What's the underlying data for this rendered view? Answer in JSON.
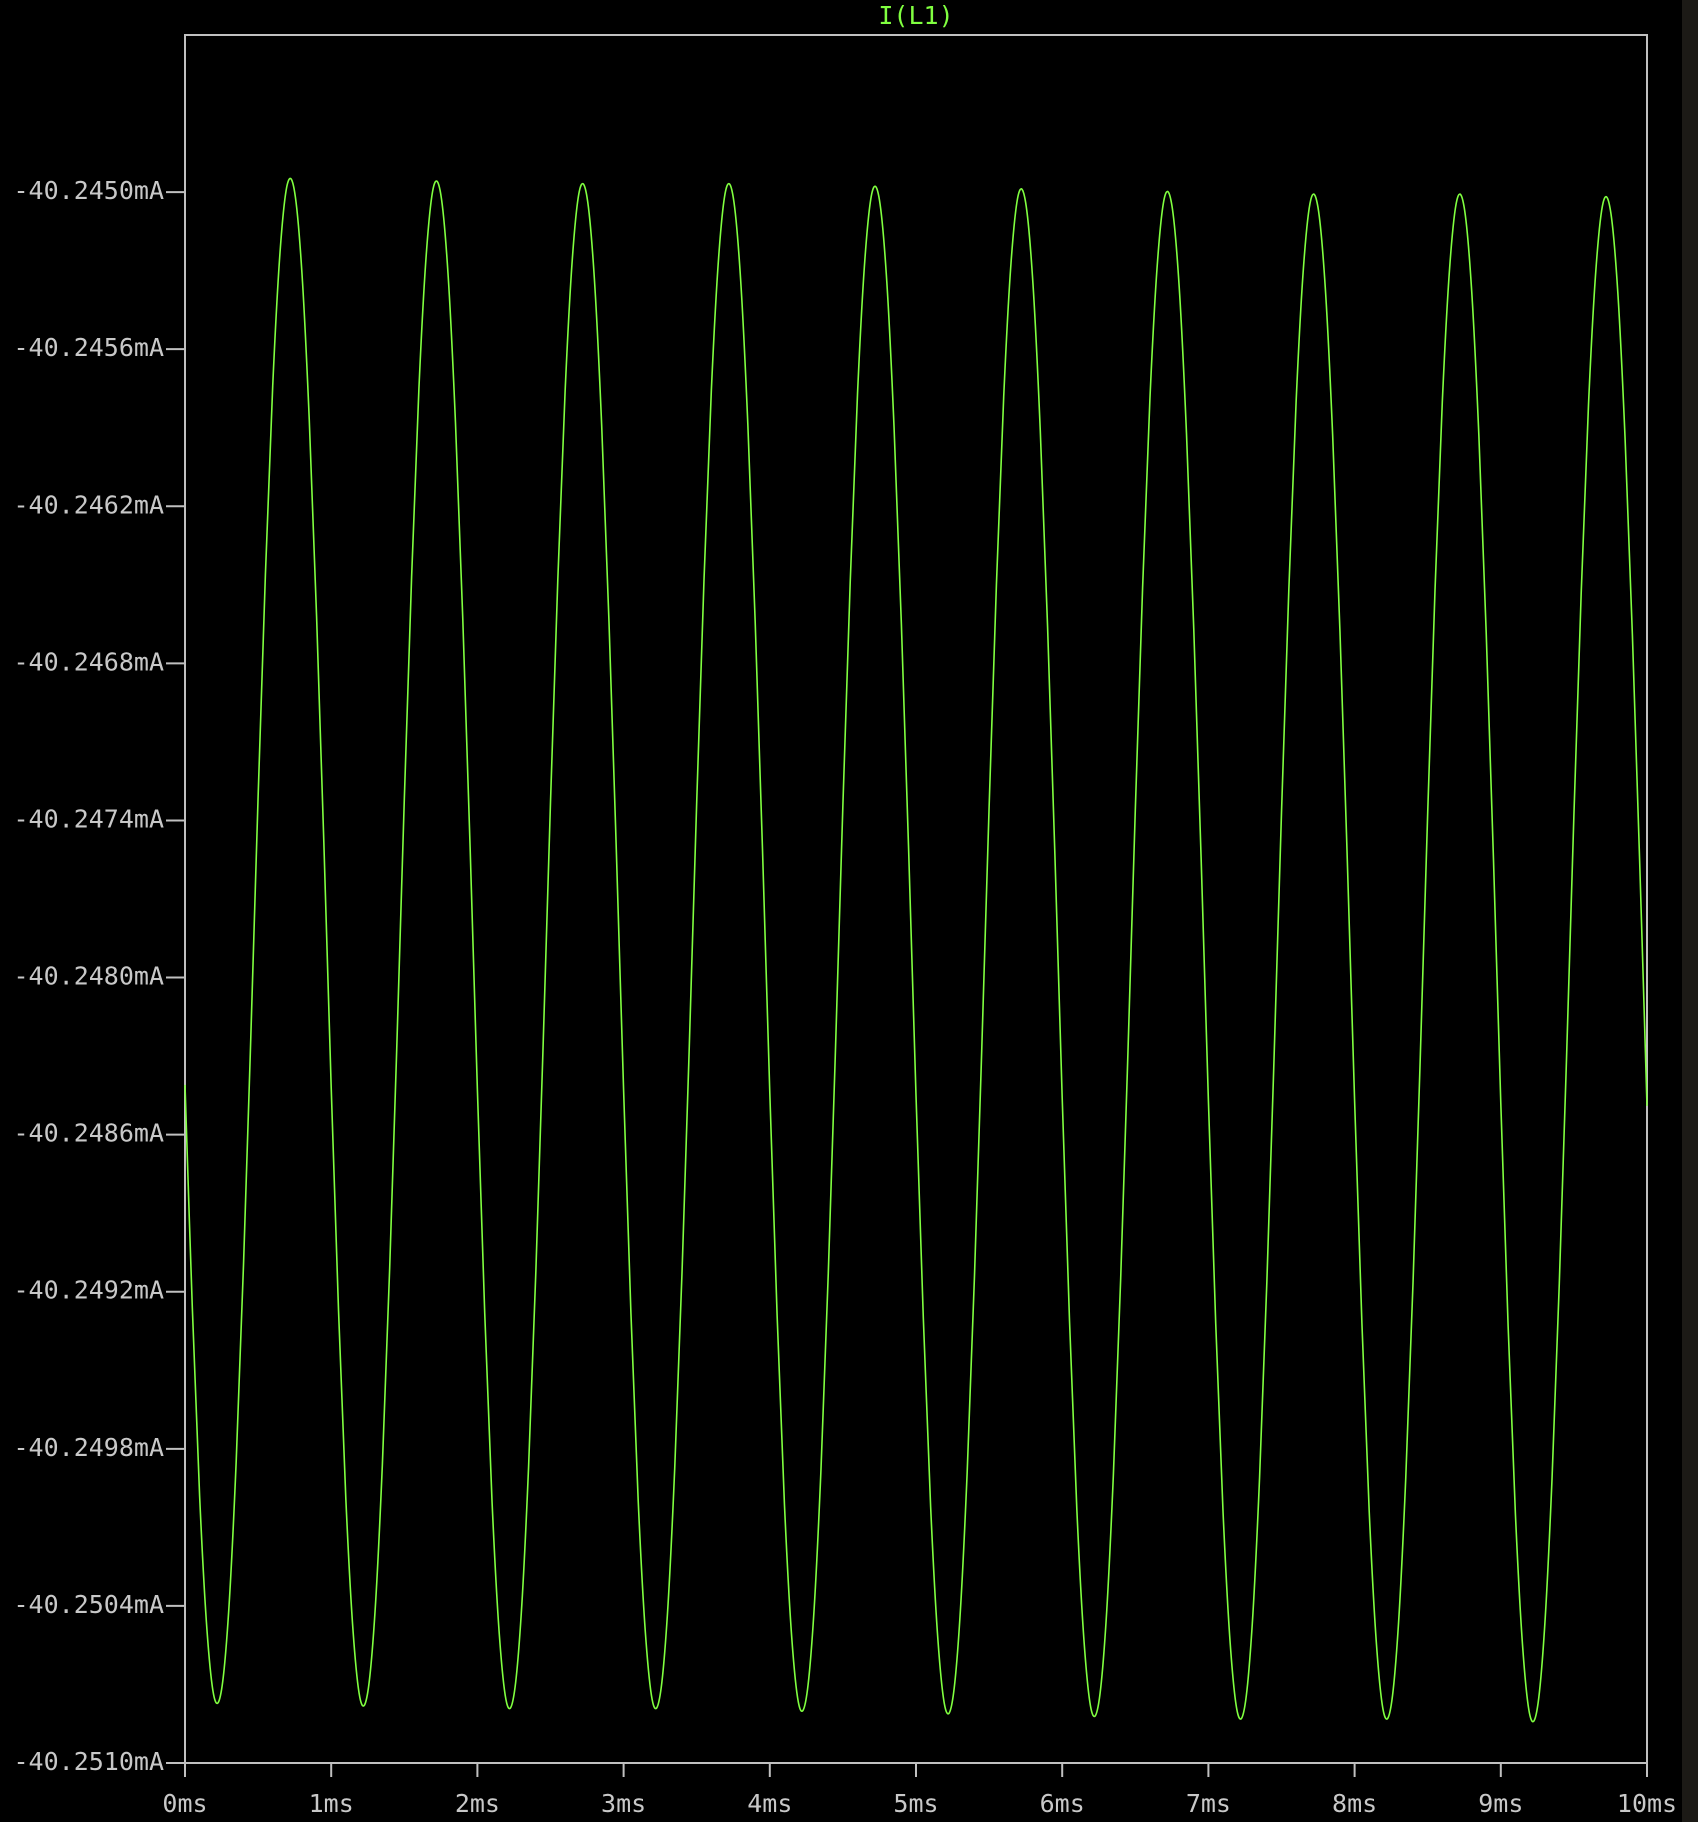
{
  "chart_data": {
    "type": "line",
    "series": [
      {
        "name": "I(L1)",
        "color": "#80ff40",
        "values": [
          -40.24841,
          -40.24926,
          -40.24998,
          -40.25049,
          -40.25075,
          -40.25072,
          -40.25041,
          -40.24985,
          -40.2491,
          -40.24823,
          -40.24731,
          -40.24646,
          -40.24574,
          -40.24523,
          -40.24497,
          -40.245,
          -40.24531,
          -40.24587,
          -40.24662,
          -40.24749,
          -40.24842,
          -40.24927,
          -40.24999,
          -40.2505,
          -40.25076,
          -40.25073,
          -40.25042,
          -40.24986,
          -40.24911,
          -40.24824,
          -40.24732,
          -40.24647,
          -40.24575,
          -40.24524,
          -40.24498,
          -40.24501,
          -40.24532,
          -40.24588,
          -40.24663,
          -40.2475,
          -40.24843,
          -40.24928,
          -40.25,
          -40.25051,
          -40.25077,
          -40.25074,
          -40.25043,
          -40.24987,
          -40.24912,
          -40.24825,
          -40.24733,
          -40.24648,
          -40.24576,
          -40.24525,
          -40.24499,
          -40.24502,
          -40.24533,
          -40.24589,
          -40.24664,
          -40.24751,
          -40.24843,
          -40.24928,
          -40.25,
          -40.25051,
          -40.25077,
          -40.25074,
          -40.25043,
          -40.24987,
          -40.24912,
          -40.24825,
          -40.24733,
          -40.24648,
          -40.24576,
          -40.24525,
          -40.24499,
          -40.24502,
          -40.24533,
          -40.24589,
          -40.24664,
          -40.24751,
          -40.24844,
          -40.24929,
          -40.25001,
          -40.25052,
          -40.25078,
          -40.25075,
          -40.25044,
          -40.24988,
          -40.24913,
          -40.24826,
          -40.24734,
          -40.24649,
          -40.24577,
          -40.24526,
          -40.245,
          -40.24503,
          -40.24534,
          -40.2459,
          -40.24665,
          -40.24752,
          -40.24845,
          -40.2493,
          -40.25002,
          -40.25053,
          -40.25079,
          -40.25076,
          -40.25045,
          -40.24989,
          -40.24914,
          -40.24827,
          -40.24735,
          -40.2465,
          -40.24578,
          -40.24527,
          -40.24501,
          -40.24504,
          -40.24535,
          -40.24591,
          -40.24666,
          -40.24753,
          -40.24846,
          -40.24931,
          -40.25003,
          -40.25054,
          -40.2508,
          -40.25077,
          -40.25046,
          -40.2499,
          -40.24915,
          -40.24828,
          -40.24736,
          -40.24651,
          -40.24579,
          -40.24528,
          -40.24502,
          -40.24505,
          -40.24536,
          -40.24592,
          -40.24667,
          -40.24754,
          -40.24847,
          -40.24932,
          -40.25004,
          -40.25055,
          -40.25081,
          -40.25078,
          -40.25047,
          -40.24991,
          -40.24916,
          -40.24829,
          -40.24737,
          -40.24652,
          -40.2458,
          -40.24529,
          -40.24503,
          -40.24506,
          -40.24537,
          -40.24593,
          -40.24668,
          -40.24755,
          -40.24847,
          -40.24932,
          -40.25004,
          -40.25055,
          -40.25081,
          -40.25078,
          -40.25047,
          -40.24991,
          -40.24916,
          -40.24829,
          -40.24737,
          -40.24652,
          -40.2458,
          -40.24529,
          -40.24503,
          -40.24506,
          -40.24537,
          -40.24593,
          -40.24668,
          -40.24755,
          -40.24848,
          -40.24933,
          -40.25005,
          -40.25056,
          -40.25082,
          -40.25079,
          -40.25048,
          -40.24992,
          -40.24917,
          -40.2483,
          -40.24738,
          -40.24653,
          -40.24581,
          -40.2453,
          -40.24504,
          -40.24507,
          -40.24538,
          -40.24594,
          -40.24669,
          -40.24756,
          -40.24849
        ]
      }
    ],
    "x": [
      0,
      0.05,
      0.1,
      0.15,
      0.2,
      0.25,
      0.3,
      0.35,
      0.4,
      0.45,
      0.5,
      0.55,
      0.6,
      0.65,
      0.7,
      0.75,
      0.8,
      0.85,
      0.9,
      0.95,
      1,
      1.05,
      1.1,
      1.15,
      1.2,
      1.25,
      1.3,
      1.35,
      1.4,
      1.45,
      1.5,
      1.55,
      1.6,
      1.65,
      1.7,
      1.75,
      1.8,
      1.85,
      1.9,
      1.95,
      2,
      2.05,
      2.1,
      2.15,
      2.2,
      2.25,
      2.3,
      2.35,
      2.4,
      2.45,
      2.5,
      2.55,
      2.6,
      2.65,
      2.7,
      2.75,
      2.8,
      2.85,
      2.9,
      2.95,
      3,
      3.05,
      3.1,
      3.15,
      3.2,
      3.25,
      3.3,
      3.35,
      3.4,
      3.45,
      3.5,
      3.55,
      3.6,
      3.65,
      3.7,
      3.75,
      3.8,
      3.85,
      3.9,
      3.95,
      4,
      4.05,
      4.1,
      4.15,
      4.2,
      4.25,
      4.3,
      4.35,
      4.4,
      4.45,
      4.5,
      4.55,
      4.6,
      4.65,
      4.7,
      4.75,
      4.8,
      4.85,
      4.9,
      4.95,
      5,
      5.05,
      5.1,
      5.15,
      5.2,
      5.25,
      5.3,
      5.35,
      5.4,
      5.45,
      5.5,
      5.55,
      5.6,
      5.65,
      5.7,
      5.75,
      5.8,
      5.85,
      5.9,
      5.95,
      6,
      6.05,
      6.1,
      6.15,
      6.2,
      6.25,
      6.3,
      6.35,
      6.4,
      6.45,
      6.5,
      6.55,
      6.6,
      6.65,
      6.7,
      6.75,
      6.8,
      6.85,
      6.9,
      6.95,
      7,
      7.05,
      7.1,
      7.15,
      7.2,
      7.25,
      7.3,
      7.35,
      7.4,
      7.45,
      7.5,
      7.55,
      7.6,
      7.65,
      7.7,
      7.75,
      7.8,
      7.85,
      7.9,
      7.95,
      8,
      8.05,
      8.1,
      8.15,
      8.2,
      8.25,
      8.3,
      8.35,
      8.4,
      8.45,
      8.5,
      8.55,
      8.6,
      8.65,
      8.7,
      8.75,
      8.8,
      8.85,
      8.9,
      8.95,
      9,
      9.05,
      9.1,
      9.15,
      9.2,
      9.25,
      9.3,
      9.35,
      9.4,
      9.45,
      9.5,
      9.55,
      9.6,
      9.65,
      9.7,
      9.75,
      9.8,
      9.85,
      9.9,
      9.95,
      10
    ],
    "xlim": [
      0,
      10
    ],
    "xticks": [
      {
        "value": 0,
        "label": "0ms"
      },
      {
        "value": 1,
        "label": "1ms"
      },
      {
        "value": 2,
        "label": "2ms"
      },
      {
        "value": 3,
        "label": "3ms"
      },
      {
        "value": 4,
        "label": "4ms"
      },
      {
        "value": 5,
        "label": "5ms"
      },
      {
        "value": 6,
        "label": "6ms"
      },
      {
        "value": 7,
        "label": "7ms"
      },
      {
        "value": 8,
        "label": "8ms"
      },
      {
        "value": 9,
        "label": "9ms"
      },
      {
        "value": 10,
        "label": "10ms"
      }
    ],
    "ylim": [
      -40.251,
      -40.2444
    ],
    "yticks": [
      {
        "value": -40.251,
        "label": "-40.2510mA"
      },
      {
        "value": -40.2504,
        "label": "-40.2504mA"
      },
      {
        "value": -40.2498,
        "label": "-40.2498mA"
      },
      {
        "value": -40.2492,
        "label": "-40.2492mA"
      },
      {
        "value": -40.2486,
        "label": "-40.2486mA"
      },
      {
        "value": -40.248,
        "label": "-40.2480mA"
      },
      {
        "value": -40.2474,
        "label": "-40.2474mA"
      },
      {
        "value": -40.2468,
        "label": "-40.2468mA"
      },
      {
        "value": -40.2462,
        "label": "-40.2462mA"
      },
      {
        "value": -40.2456,
        "label": "-40.2456mA"
      },
      {
        "value": -40.245,
        "label": "-40.2450mA"
      }
    ],
    "grid": false,
    "axis_color": "#c0c0c0"
  }
}
